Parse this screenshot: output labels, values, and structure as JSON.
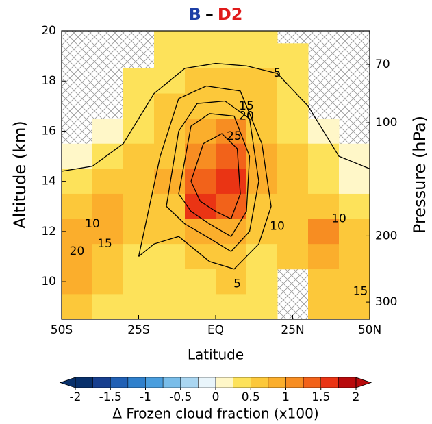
{
  "chart_data": {
    "type": "contour",
    "title": [
      {
        "text": "B",
        "color": "#1d3fa6"
      },
      {
        "text": "–",
        "color": "#000000"
      },
      {
        "text": "D2",
        "color": "#e01a1a"
      }
    ],
    "x_label": "Latitude",
    "y_label": "Altitude (km)",
    "y2_label": "Pressure (hPa)",
    "xlim": [
      -50,
      50
    ],
    "xticks": [
      {
        "value": -50,
        "label": "50S"
      },
      {
        "value": -25,
        "label": "25S"
      },
      {
        "value": 0,
        "label": "EQ"
      },
      {
        "value": 25,
        "label": "25N"
      },
      {
        "value": 50,
        "label": "50N"
      }
    ],
    "ylim": [
      8.5,
      20
    ],
    "yticks": [
      10,
      12,
      14,
      16,
      18,
      20
    ],
    "y2lim": [
      333,
      57
    ],
    "y2scale": "log",
    "y2ticks": [
      70,
      100,
      200,
      300
    ],
    "field": {
      "x": [
        -45,
        -35,
        -25,
        -15,
        -5,
        5,
        15,
        25,
        35,
        45
      ],
      "y": [
        20,
        19,
        18,
        17,
        16,
        15,
        14,
        13,
        12,
        11,
        10,
        9
      ],
      "values": [
        [
          null,
          null,
          null,
          0.3,
          0.3,
          0.3,
          0.3,
          null,
          null,
          null
        ],
        [
          null,
          null,
          null,
          0.4,
          0.4,
          0.4,
          0.4,
          0.3,
          null,
          null
        ],
        [
          null,
          null,
          0.3,
          0.4,
          0.5,
          0.5,
          0.5,
          0.4,
          null,
          null
        ],
        [
          null,
          null,
          0.3,
          0.5,
          0.6,
          0.7,
          0.5,
          0.4,
          null,
          null
        ],
        [
          null,
          0.2,
          0.4,
          0.6,
          0.9,
          1.1,
          0.6,
          0.4,
          0.2,
          null
        ],
        [
          0,
          0.3,
          0.5,
          0.7,
          1.1,
          1.4,
          0.8,
          0.5,
          0.3,
          0.1
        ],
        [
          0.3,
          0.6,
          0.6,
          0.8,
          1.4,
          1.5,
          0.8,
          0.6,
          0.4,
          0.2
        ],
        [
          0.6,
          0.8,
          0.6,
          0.6,
          1.5,
          1.3,
          0.6,
          0.7,
          0.7,
          0.4
        ],
        [
          0.8,
          0.8,
          0.6,
          0.5,
          0.8,
          0.8,
          0.5,
          0.7,
          1.0,
          0.6
        ],
        [
          0.9,
          0.7,
          0.4,
          0.4,
          0.5,
          0.6,
          0.4,
          0.5,
          0.8,
          0.7
        ],
        [
          0.8,
          0.6,
          0.4,
          0.3,
          0.4,
          0.5,
          0.3,
          null,
          0.6,
          0.6
        ],
        [
          0.6,
          0.4,
          0.3,
          0.3,
          0.3,
          0.4,
          0.3,
          null,
          0.5,
          0.5
        ]
      ]
    },
    "contours": [
      {
        "level": 5,
        "x": [
          -50,
          -40,
          -30,
          -20,
          -10,
          0,
          10,
          20,
          30,
          40,
          50
        ],
        "y": [
          14.4,
          14.6,
          15.5,
          17.5,
          18.5,
          18.7,
          18.6,
          18.3,
          17,
          15,
          14.5
        ]
      },
      {
        "level": 10,
        "x": [
          -25,
          -18,
          -12,
          -3,
          8,
          15,
          18,
          14,
          6,
          -2,
          -12,
          -20,
          -25
        ],
        "y": [
          11,
          15,
          17.3,
          17.8,
          17.6,
          15.5,
          13,
          11.5,
          10.5,
          10.8,
          11.8,
          11.5,
          11
        ]
      },
      {
        "level": 15,
        "x": [
          -16,
          -12,
          -6,
          3,
          11,
          14,
          11,
          5,
          -3,
          -10,
          -16
        ],
        "y": [
          13,
          16,
          17.1,
          17.2,
          16.5,
          14,
          12,
          11.2,
          11.8,
          12.3,
          13
        ]
      },
      {
        "level": 20,
        "x": [
          -12,
          -8,
          -2,
          6,
          11,
          10,
          5,
          -2,
          -8,
          -12
        ],
        "y": [
          13.5,
          16.2,
          16.7,
          16.6,
          15,
          12.8,
          11.8,
          12.3,
          12.8,
          13.5
        ]
      },
      {
        "level": 25,
        "x": [
          -8,
          -4,
          2,
          7,
          8,
          5,
          0,
          -5,
          -8
        ],
        "y": [
          14,
          15.5,
          15.9,
          15.3,
          13.5,
          12.5,
          12.8,
          13.2,
          14
        ]
      }
    ],
    "contour_labels": [
      {
        "value": 5,
        "x": 20,
        "y": 18.3
      },
      {
        "value": 5,
        "x": 7,
        "y": 9.9
      },
      {
        "value": 10,
        "x": -40,
        "y": 12.3
      },
      {
        "value": 10,
        "x": 20,
        "y": 12.2
      },
      {
        "value": 10,
        "x": 40,
        "y": 12.5
      },
      {
        "value": 15,
        "x": 10,
        "y": 17
      },
      {
        "value": 15,
        "x": -36,
        "y": 11.5
      },
      {
        "value": 15,
        "x": 47,
        "y": 9.6
      },
      {
        "value": 20,
        "x": 10,
        "y": 16.6
      },
      {
        "value": 20,
        "x": -45,
        "y": 11.2
      },
      {
        "value": 25,
        "x": 6,
        "y": 15.8
      }
    ],
    "colorbar": {
      "label": "Δ Frozen cloud fraction (x100)",
      "levels": [
        -2,
        -1.75,
        -1.5,
        -1.25,
        -1,
        -0.75,
        -0.5,
        -0.25,
        0,
        0.25,
        0.5,
        0.75,
        1,
        1.25,
        1.5,
        1.75,
        2
      ],
      "colors": [
        "#08306b",
        "#173f8f",
        "#2160b4",
        "#2f80cc",
        "#4a9ede",
        "#79bde9",
        "#aad6f1",
        "#e9f5fb",
        "#fff7c8",
        "#fde25a",
        "#fcc83a",
        "#fbae2c",
        "#f78d22",
        "#f2621a",
        "#ea3414",
        "#b80a0c"
      ],
      "ticks": [
        -2,
        -1.5,
        -1,
        -0.5,
        0,
        0.5,
        1,
        1.5,
        2
      ]
    }
  }
}
